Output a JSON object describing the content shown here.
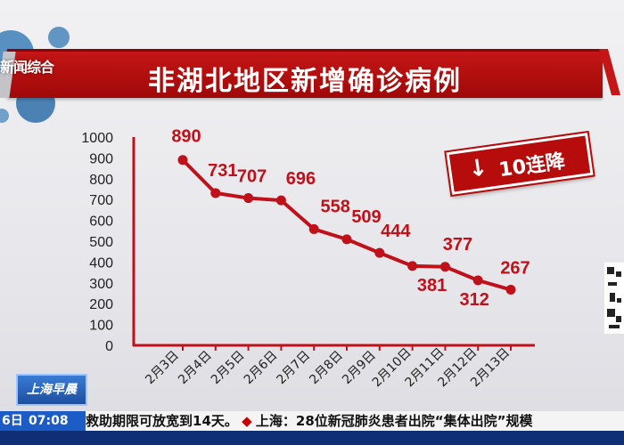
{
  "title": "非湖北地区新增确诊病例",
  "channel": "新闻综合",
  "badge": {
    "text": "10连降"
  },
  "chart_data": {
    "type": "line",
    "title": "非湖北地区新增确诊病例",
    "categories": [
      "2月3日",
      "2月4日",
      "2月5日",
      "2月6日",
      "2月7日",
      "2月8日",
      "2月9日",
      "2月10日",
      "2月11日",
      "2月12日",
      "2月13日"
    ],
    "values": [
      890,
      731,
      707,
      696,
      558,
      509,
      444,
      381,
      377,
      312,
      267
    ],
    "ylim": [
      0,
      1000
    ],
    "yticks": [
      0,
      100,
      200,
      300,
      400,
      500,
      600,
      700,
      800,
      900,
      1000
    ],
    "line_color": "#c0101a",
    "grid": false
  },
  "ticker": {
    "date": "6日",
    "time": "07:08",
    "text1": "救助期限可放宽到14天。",
    "city": "上海：",
    "text2": "28位新冠肺炎患者出院“集体出院”规模"
  },
  "station_logo": "上海早晨"
}
